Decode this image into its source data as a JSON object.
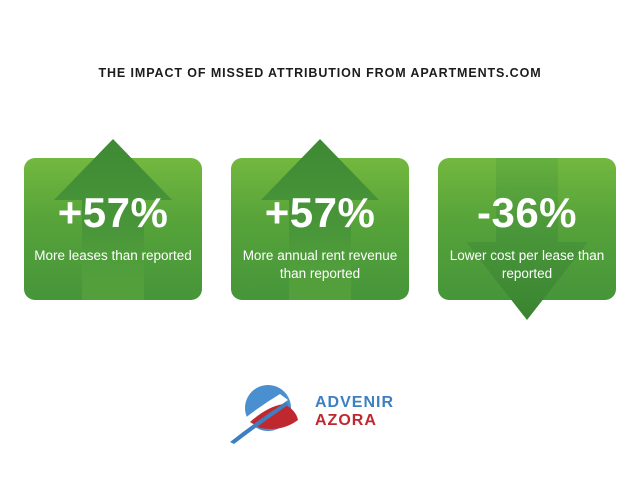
{
  "headline": "THE IMPACT OF MISSED ATTRIBUTION FROM APARTMENTS.COM",
  "cards": [
    {
      "stat": "+57%",
      "description": "More leases than reported",
      "direction": "up"
    },
    {
      "stat": "+57%",
      "description": "More annual rent revenue than reported",
      "direction": "up"
    },
    {
      "stat": "-36%",
      "description": "Lower cost per lease than reported",
      "direction": "down"
    }
  ],
  "logo": {
    "line1": "ADVENIR",
    "line2": "AZORA"
  },
  "colors": {
    "card_green": "#56a33a",
    "arrow_green": "#3f8a35",
    "logo_blue": "#3d7fc1",
    "logo_red": "#c0282f"
  }
}
